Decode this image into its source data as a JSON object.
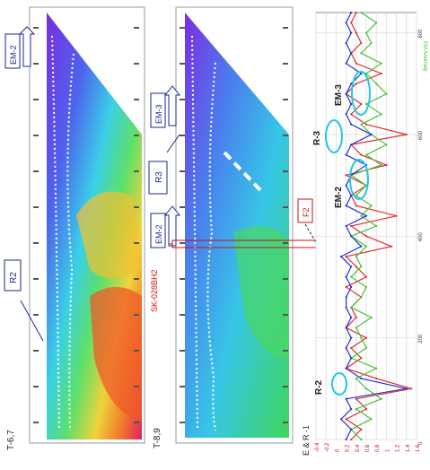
{
  "colors": {
    "red": "#e03030",
    "green": "#4cbf3c",
    "blue": "#2233cc",
    "cyan": "#22c7e0",
    "annotation_blue": "#1a2a8a",
    "annotation_red": "#cc1111"
  },
  "sections": {
    "section_a": {
      "name": "T-6,7",
      "zone": "R2",
      "line": "EM-2"
    },
    "section_b": {
      "name": "T-8,9",
      "zone": "R3",
      "lines": [
        "EM-3",
        "EM-2"
      ],
      "fault": "F2",
      "borehole": "SK-028BH2"
    }
  },
  "profile": {
    "label": "E & R -1",
    "y2_label": "EM Anomaly",
    "tick_labels_y": [
      "-0.4",
      "-0.2",
      "0",
      "0.2",
      "0.4",
      "0.6",
      "0.8",
      "1",
      "1.2",
      "1.4",
      "1.6"
    ],
    "tick_labels_x": [
      "0",
      "200",
      "400",
      "600",
      "800"
    ],
    "annotations": [
      "R-2",
      "EM-2",
      "R-3",
      "EM-3"
    ]
  },
  "chart_data": [
    {
      "type": "heatmap",
      "name": "T-6,7",
      "zones": [
        "R2"
      ],
      "lines": [
        "EM-2"
      ]
    },
    {
      "type": "heatmap",
      "name": "T-8,9",
      "zones": [
        "R3"
      ],
      "lines": [
        "EM-3",
        "EM-2"
      ],
      "fault": "F2",
      "borehole": "SK-028BH2"
    },
    {
      "type": "line",
      "title": "E & R -1",
      "x": [
        0,
        20,
        40,
        60,
        80,
        100,
        120,
        140,
        160,
        180,
        200,
        220,
        240,
        260,
        280,
        300,
        320,
        340,
        360,
        380,
        400,
        420,
        440,
        460,
        480,
        500,
        520,
        540,
        560,
        580,
        600,
        620,
        640,
        660,
        680,
        700,
        720,
        740,
        760,
        780,
        800,
        820,
        840
      ],
      "xlim": [
        0,
        840
      ],
      "ylim": [
        -0.4,
        1.6
      ],
      "series": [
        {
          "color": "red",
          "values": [
            0.3,
            0.5,
            0.2,
            0.6,
            0.4,
            1.5,
            0.8,
            0.2,
            0.5,
            0.3,
            0.6,
            0.2,
            0.4,
            0.3,
            0.5,
            0.2,
            0.6,
            0.4,
            0.2,
            1.1,
            0.6,
            0.3,
            1.2,
            0.4,
            0.3,
            0.6,
            0.2,
            1.0,
            0.5,
            0.3,
            1.4,
            0.6,
            0.3,
            0.5,
            0.2,
            0.4,
            0.9,
            0.4,
            0.3,
            0.5,
            0.4,
            0.3,
            0.4
          ]
        },
        {
          "color": "green",
          "values": [
            0.5,
            0.3,
            0.7,
            0.4,
            0.9,
            0.6,
            0.4,
            0.8,
            0.3,
            0.6,
            0.5,
            0.4,
            0.7,
            0.3,
            0.5,
            0.6,
            0.3,
            0.5,
            0.4,
            0.6,
            0.3,
            0.8,
            0.5,
            0.7,
            0.4,
            0.6,
            0.3,
            0.9,
            0.6,
            1.0,
            0.7,
            0.5,
            0.9,
            0.6,
            1.0,
            0.8,
            0.6,
            0.9,
            0.5,
            0.7,
            0.6,
            0.8,
            0.5
          ]
        },
        {
          "color": "blue",
          "values": [
            0.2,
            0.3,
            0.1,
            0.3,
            0.2,
            1.4,
            0.5,
            0.2,
            0.3,
            0.2,
            0.3,
            0.2,
            0.3,
            0.2,
            0.2,
            0.3,
            0.2,
            0.3,
            0.1,
            0.5,
            0.3,
            0.2,
            0.6,
            0.2,
            0.3,
            0.2,
            0.3,
            0.6,
            0.2,
            0.3,
            0.7,
            0.3,
            0.2,
            0.3,
            0.2,
            0.3,
            0.5,
            0.2,
            0.3,
            0.2,
            0.3,
            0.2,
            0.3
          ]
        }
      ]
    }
  ]
}
